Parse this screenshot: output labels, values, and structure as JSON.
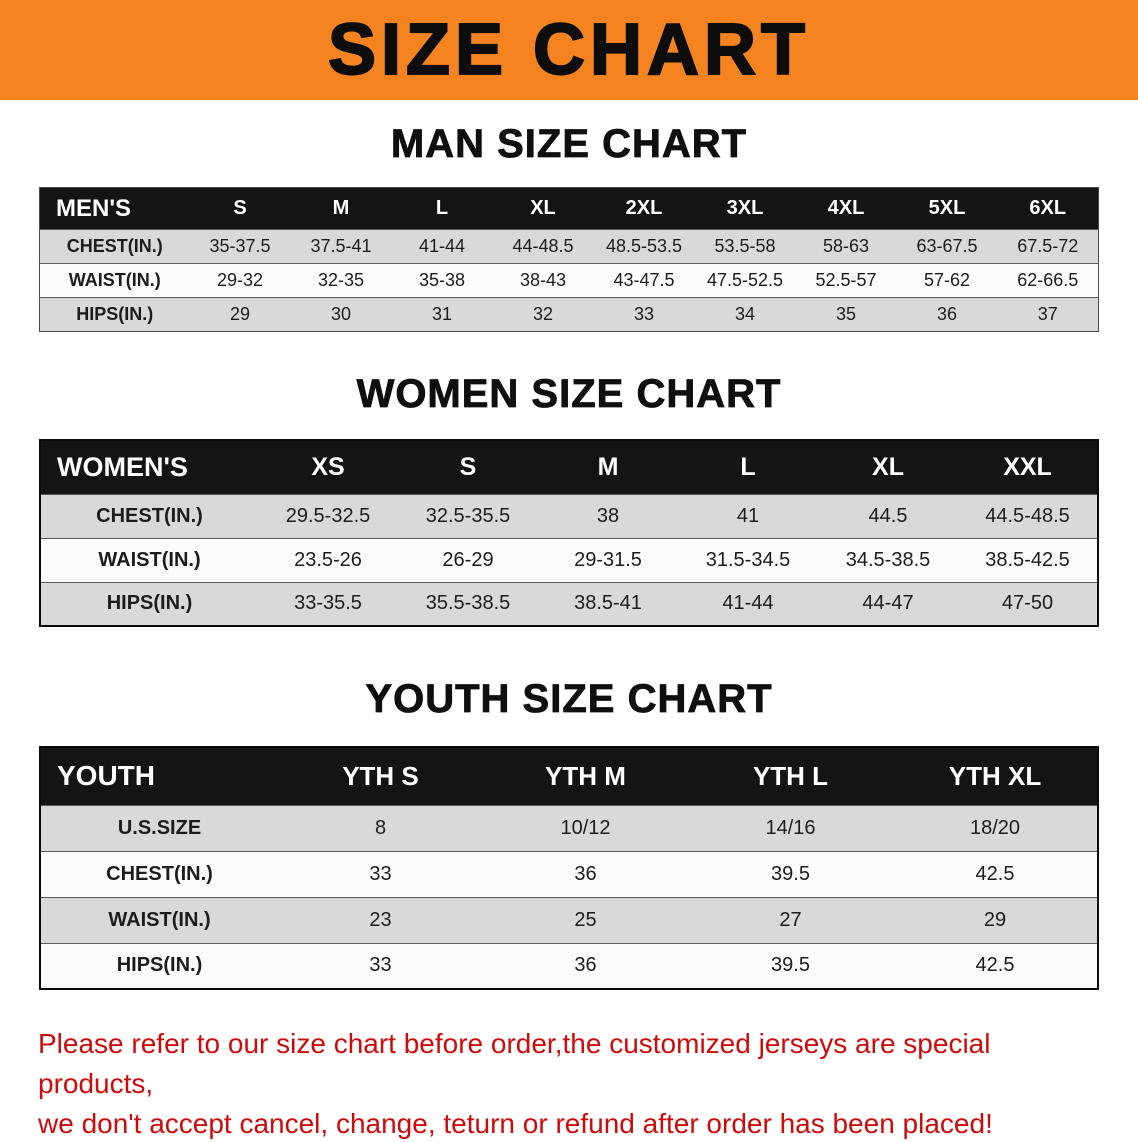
{
  "banner": {
    "title": "SIZE CHART",
    "bg_color": "#f5831f"
  },
  "sections": [
    {
      "heading": "MAN SIZE CHART",
      "table": {
        "label": "MEN'S",
        "columns": [
          "S",
          "M",
          "L",
          "XL",
          "2XL",
          "3XL",
          "4XL",
          "5XL",
          "6XL"
        ],
        "rows": [
          {
            "label": "CHEST(IN.)",
            "values": [
              "35-37.5",
              "37.5-41",
              "41-44",
              "44-48.5",
              "48.5-53.5",
              "53.5-58",
              "58-63",
              "63-67.5",
              "67.5-72"
            ]
          },
          {
            "label": "WAIST(IN.)",
            "values": [
              "29-32",
              "32-35",
              "35-38",
              "38-43",
              "43-47.5",
              "47.5-52.5",
              "52.5-57",
              "57-62",
              "62-66.5"
            ]
          },
          {
            "label": "HIPS(IN.)",
            "values": [
              "29",
              "30",
              "31",
              "32",
              "33",
              "34",
              "35",
              "36",
              "37"
            ]
          }
        ]
      }
    },
    {
      "heading": "WOMEN SIZE CHART",
      "table": {
        "label": "WOMEN'S",
        "columns": [
          "XS",
          "S",
          "M",
          "L",
          "XL",
          "XXL"
        ],
        "rows": [
          {
            "label": "CHEST(IN.)",
            "values": [
              "29.5-32.5",
              "32.5-35.5",
              "38",
              "41",
              "44.5",
              "44.5-48.5"
            ]
          },
          {
            "label": "WAIST(IN.)",
            "values": [
              "23.5-26",
              "26-29",
              "29-31.5",
              "31.5-34.5",
              "34.5-38.5",
              "38.5-42.5"
            ]
          },
          {
            "label": "HIPS(IN.)",
            "values": [
              "33-35.5",
              "35.5-38.5",
              "38.5-41",
              "41-44",
              "44-47",
              "47-50"
            ]
          }
        ]
      }
    },
    {
      "heading": "YOUTH SIZE CHART",
      "table": {
        "label": "YOUTH",
        "columns": [
          "YTH S",
          "YTH M",
          "YTH L",
          "YTH XL"
        ],
        "rows": [
          {
            "label": "U.S.SIZE",
            "values": [
              "8",
              "10/12",
              "14/16",
              "18/20"
            ]
          },
          {
            "label": "CHEST(IN.)",
            "values": [
              "33",
              "36",
              "39.5",
              "42.5"
            ]
          },
          {
            "label": "WAIST(IN.)",
            "values": [
              "23",
              "25",
              "27",
              "29"
            ]
          },
          {
            "label": "HIPS(IN.)",
            "values": [
              "33",
              "36",
              "39.5",
              "42.5"
            ]
          }
        ]
      }
    }
  ],
  "footer": {
    "line1": "Please refer to our size chart before order,the customized jerseys are special products,",
    "line2": "we don't accept cancel, change, teturn or refund after order has been placed!",
    "color": "#cf0a0a"
  }
}
